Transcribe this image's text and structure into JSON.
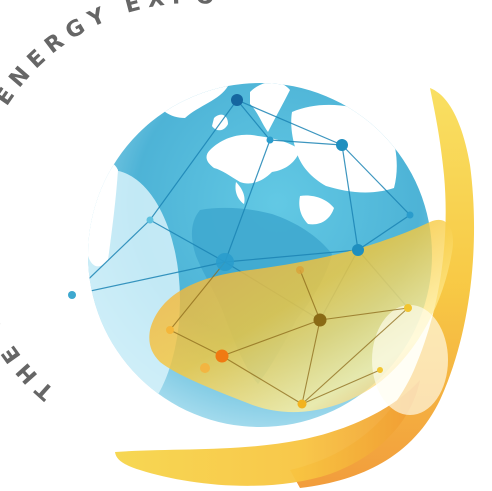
{
  "logo": {
    "title_text": "THE RENEWABLE ENERGY EXPO",
    "colors": {
      "ocean": "#4fb9d9",
      "ocean_light": "#c9eef8",
      "land": "#ffffff",
      "network_blue": "#1f8fbf",
      "node_dark_blue": "#1566a0",
      "swoosh_orange": "#f39c2c",
      "swoosh_yellow": "#f7cf2e",
      "swoosh_light": "#fff1a8",
      "node_orange": "#f07a12",
      "node_olive": "#8a6a15",
      "text": "#666666"
    },
    "icons": [
      "globe-icon",
      "energy-swoosh-icon",
      "network-node-icon"
    ]
  }
}
